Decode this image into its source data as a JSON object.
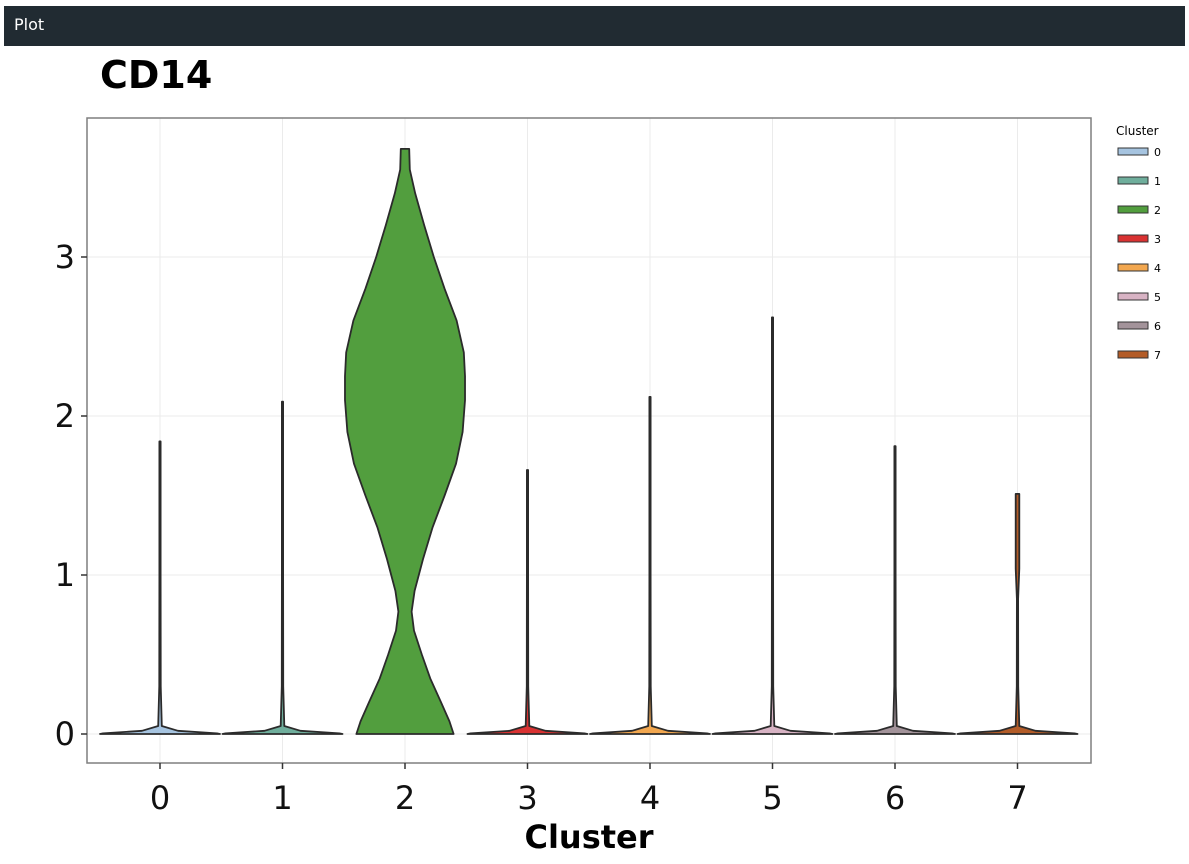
{
  "window": {
    "title": "Plot"
  },
  "chart_data": {
    "type": "violin",
    "title": "CD14",
    "xlabel": "Cluster",
    "ylabel": "",
    "categories": [
      "0",
      "1",
      "2",
      "3",
      "4",
      "5",
      "6",
      "7"
    ],
    "yticks": [
      0,
      1,
      2,
      3
    ],
    "ylim": [
      -0.18,
      3.7
    ],
    "grid": true,
    "legend": {
      "title": "Cluster",
      "placement": "right",
      "entries": [
        {
          "label": "0",
          "color": "#a6c4e0"
        },
        {
          "label": "1",
          "color": "#6fae9c"
        },
        {
          "label": "2",
          "color": "#529e3e"
        },
        {
          "label": "3",
          "color": "#d93232"
        },
        {
          "label": "4",
          "color": "#f2a74f"
        },
        {
          "label": "5",
          "color": "#d8b3c4"
        },
        {
          "label": "6",
          "color": "#a3939a"
        },
        {
          "label": "7",
          "color": "#b35c28"
        }
      ]
    },
    "series": [
      {
        "cluster": "0",
        "color": "#a6c4e0",
        "max": 1.84,
        "base_halfwidth": 0.49,
        "profile": [
          [
            0,
            1
          ],
          [
            0.004,
            0.95
          ],
          [
            0.02,
            0.3
          ],
          [
            0.05,
            0.03
          ],
          [
            0.3,
            0.012
          ],
          [
            1.0,
            0.008
          ],
          [
            1.84,
            0.006
          ]
        ]
      },
      {
        "cluster": "1",
        "color": "#6fae9c",
        "max": 2.09,
        "base_halfwidth": 0.49,
        "profile": [
          [
            0,
            1
          ],
          [
            0.004,
            0.95
          ],
          [
            0.02,
            0.3
          ],
          [
            0.05,
            0.03
          ],
          [
            0.3,
            0.012
          ],
          [
            1.0,
            0.008
          ],
          [
            2.09,
            0.006
          ]
        ]
      },
      {
        "cluster": "2",
        "color": "#529e3e",
        "max": 3.68,
        "base_halfwidth": 0.49,
        "profile": [
          [
            0,
            0.81
          ],
          [
            0.08,
            0.74
          ],
          [
            0.2,
            0.6
          ],
          [
            0.35,
            0.42
          ],
          [
            0.5,
            0.28
          ],
          [
            0.65,
            0.15
          ],
          [
            0.77,
            0.11
          ],
          [
            0.9,
            0.16
          ],
          [
            1.1,
            0.3
          ],
          [
            1.3,
            0.46
          ],
          [
            1.5,
            0.66
          ],
          [
            1.7,
            0.85
          ],
          [
            1.9,
            0.96
          ],
          [
            2.1,
            1.0
          ],
          [
            2.25,
            1.0
          ],
          [
            2.4,
            0.98
          ],
          [
            2.6,
            0.86
          ],
          [
            2.8,
            0.66
          ],
          [
            3.0,
            0.48
          ],
          [
            3.2,
            0.32
          ],
          [
            3.4,
            0.17
          ],
          [
            3.55,
            0.08
          ],
          [
            3.68,
            0.07
          ]
        ]
      },
      {
        "cluster": "3",
        "color": "#d93232",
        "max": 1.66,
        "base_halfwidth": 0.49,
        "profile": [
          [
            0,
            1
          ],
          [
            0.004,
            0.95
          ],
          [
            0.02,
            0.3
          ],
          [
            0.05,
            0.03
          ],
          [
            0.3,
            0.012
          ],
          [
            1.0,
            0.008
          ],
          [
            1.66,
            0.006
          ]
        ]
      },
      {
        "cluster": "4",
        "color": "#f2a74f",
        "max": 2.12,
        "base_halfwidth": 0.49,
        "profile": [
          [
            0,
            1
          ],
          [
            0.004,
            0.95
          ],
          [
            0.02,
            0.3
          ],
          [
            0.05,
            0.03
          ],
          [
            0.3,
            0.012
          ],
          [
            1.0,
            0.008
          ],
          [
            2.12,
            0.006
          ]
        ]
      },
      {
        "cluster": "5",
        "color": "#d8b3c4",
        "max": 2.62,
        "base_halfwidth": 0.49,
        "profile": [
          [
            0,
            1
          ],
          [
            0.004,
            0.95
          ],
          [
            0.02,
            0.3
          ],
          [
            0.05,
            0.03
          ],
          [
            0.3,
            0.012
          ],
          [
            1.0,
            0.008
          ],
          [
            2.62,
            0.006
          ]
        ]
      },
      {
        "cluster": "6",
        "color": "#a3939a",
        "max": 1.81,
        "base_halfwidth": 0.49,
        "profile": [
          [
            0,
            1
          ],
          [
            0.004,
            0.95
          ],
          [
            0.02,
            0.3
          ],
          [
            0.05,
            0.03
          ],
          [
            0.3,
            0.012
          ],
          [
            1.0,
            0.008
          ],
          [
            1.81,
            0.006
          ]
        ]
      },
      {
        "cluster": "7",
        "color": "#b35c28",
        "max": 1.51,
        "base_halfwidth": 0.49,
        "profile": [
          [
            0,
            1
          ],
          [
            0.004,
            0.95
          ],
          [
            0.02,
            0.3
          ],
          [
            0.05,
            0.03
          ],
          [
            0.3,
            0.012
          ],
          [
            0.85,
            0.01
          ],
          [
            1.04,
            0.03
          ],
          [
            1.08,
            0.03
          ],
          [
            1.17,
            0.03
          ],
          [
            1.26,
            0.03
          ],
          [
            1.45,
            0.03
          ],
          [
            1.51,
            0.03
          ]
        ]
      }
    ]
  }
}
